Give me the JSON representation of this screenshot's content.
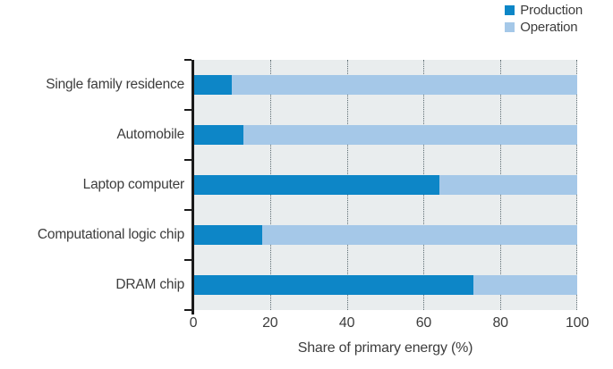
{
  "colors": {
    "production": "#0d86c7",
    "operation": "#a5c8e8",
    "plot_background": "#e9edee",
    "axis": "#1a1a1a",
    "text": "#3d3d3d",
    "gridline": "#5d6c72",
    "page_background": "#ffffff"
  },
  "legend": {
    "items": [
      {
        "label": "Production",
        "series": "production"
      },
      {
        "label": "Operation",
        "series": "operation"
      }
    ]
  },
  "chart_data": {
    "type": "bar",
    "orientation": "horizontal",
    "stacked": true,
    "title": "",
    "xlabel": "Share of primary energy (%)",
    "ylabel": "",
    "xlim": [
      0,
      100
    ],
    "xticks": [
      0,
      20,
      40,
      60,
      80,
      100
    ],
    "grid": "vertical-dotted",
    "legend_position": "top-right",
    "categories": [
      "Single family residence",
      "Automobile",
      "Laptop computer",
      "Computational logic chip",
      "DRAM chip"
    ],
    "series": [
      {
        "name": "Production",
        "color_key": "production",
        "values": [
          10,
          13,
          64,
          18,
          73
        ]
      },
      {
        "name": "Operation",
        "color_key": "operation",
        "values": [
          90,
          87,
          36,
          82,
          27
        ]
      }
    ]
  }
}
